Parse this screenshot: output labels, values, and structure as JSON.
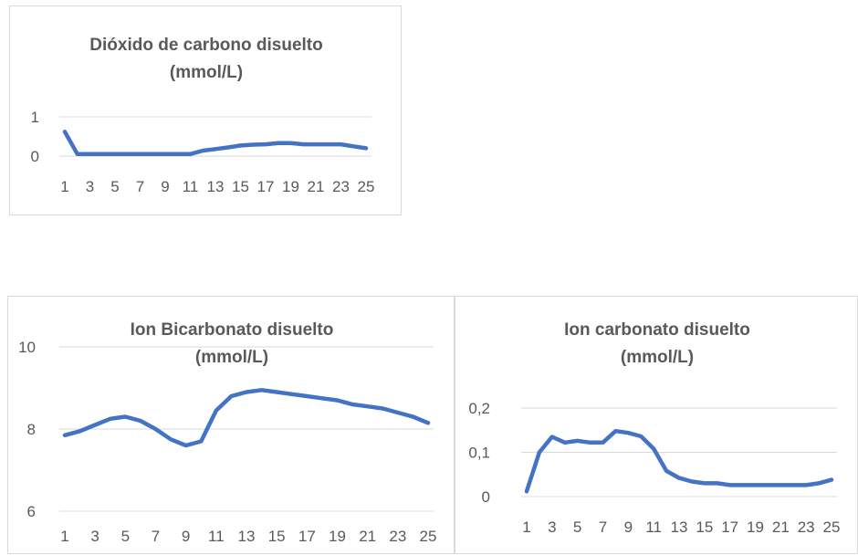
{
  "chart_data": [
    {
      "type": "line",
      "title_line1": "Dióxido de carbono disuelto",
      "title_line2": "(mmol/L)",
      "x_tick_labels": [
        "1",
        "3",
        "5",
        "7",
        "9",
        "11",
        "13",
        "15",
        "17",
        "19",
        "21",
        "23",
        "25"
      ],
      "y_tick_labels": [
        "0",
        "1"
      ],
      "ylim": [
        0,
        1
      ],
      "color": "#4472C4",
      "x": [
        1,
        2,
        3,
        4,
        5,
        6,
        7,
        8,
        9,
        10,
        11,
        12,
        13,
        14,
        15,
        16,
        17,
        18,
        19,
        20,
        21,
        22,
        23,
        24,
        25
      ],
      "values": [
        0.62,
        0.05,
        0.05,
        0.05,
        0.05,
        0.05,
        0.05,
        0.05,
        0.05,
        0.05,
        0.05,
        0.14,
        0.18,
        0.22,
        0.27,
        0.29,
        0.3,
        0.33,
        0.33,
        0.3,
        0.3,
        0.3,
        0.3,
        0.25,
        0.2
      ]
    },
    {
      "type": "line",
      "title_line1": "Ion Bicarbonato disuelto",
      "title_line2": "(mmol/L)",
      "x_tick_labels": [
        "1",
        "3",
        "5",
        "7",
        "9",
        "11",
        "13",
        "15",
        "17",
        "19",
        "21",
        "23",
        "25"
      ],
      "y_tick_labels": [
        "6",
        "8",
        "10"
      ],
      "ylim": [
        6,
        10
      ],
      "color": "#4472C4",
      "x": [
        1,
        2,
        3,
        4,
        5,
        6,
        7,
        8,
        9,
        10,
        11,
        12,
        13,
        14,
        15,
        16,
        17,
        18,
        19,
        20,
        21,
        22,
        23,
        24,
        25
      ],
      "values": [
        7.85,
        7.95,
        8.1,
        8.25,
        8.3,
        8.2,
        8.0,
        7.75,
        7.6,
        7.7,
        8.45,
        8.8,
        8.9,
        8.95,
        8.9,
        8.85,
        8.8,
        8.75,
        8.7,
        8.6,
        8.55,
        8.5,
        8.4,
        8.3,
        8.15
      ]
    },
    {
      "type": "line",
      "title_line1": "Ion carbonato disuelto",
      "title_line2": "(mmol/L)",
      "x_tick_labels": [
        "1",
        "3",
        "5",
        "7",
        "9",
        "11",
        "13",
        "15",
        "17",
        "19",
        "21",
        "23",
        "25"
      ],
      "y_tick_labels": [
        "0",
        "0,1",
        "0,2"
      ],
      "ylim": [
        0,
        0.2
      ],
      "color": "#4472C4",
      "x": [
        1,
        2,
        3,
        4,
        5,
        6,
        7,
        8,
        9,
        10,
        11,
        12,
        13,
        14,
        15,
        16,
        17,
        18,
        19,
        20,
        21,
        22,
        23,
        24,
        25
      ],
      "values": [
        0.012,
        0.1,
        0.135,
        0.122,
        0.126,
        0.122,
        0.122,
        0.148,
        0.144,
        0.136,
        0.108,
        0.058,
        0.042,
        0.034,
        0.03,
        0.03,
        0.026,
        0.026,
        0.026,
        0.026,
        0.026,
        0.026,
        0.026,
        0.03,
        0.038
      ]
    }
  ]
}
